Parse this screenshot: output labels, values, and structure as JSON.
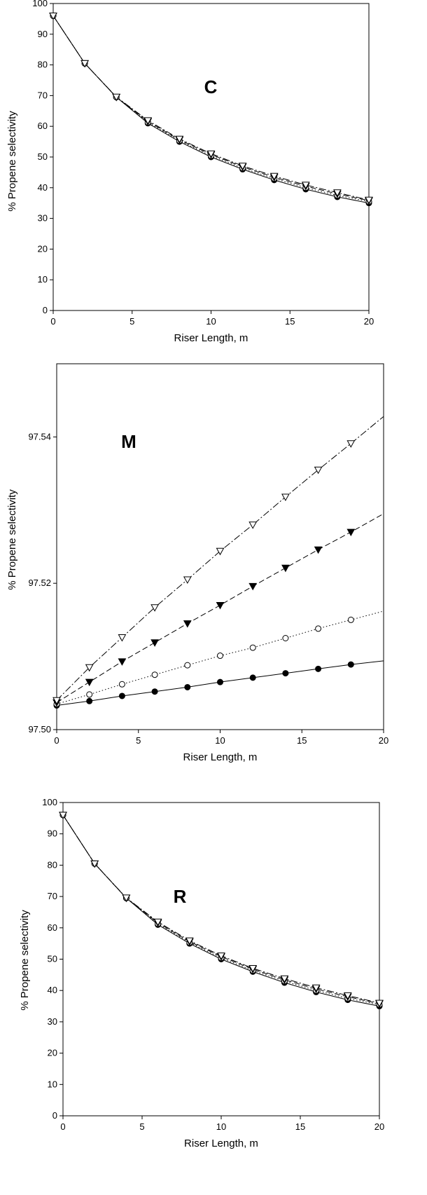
{
  "chart_data": [
    {
      "type": "line",
      "annotation": "C",
      "xlabel": "Riser Length, m",
      "ylabel": "% Propene selectivity",
      "xlim": [
        0,
        20
      ],
      "ylim": [
        0,
        100
      ],
      "xticks": [
        "0",
        "5",
        "10",
        "15",
        "20"
      ],
      "yticks": [
        "0",
        "10",
        "20",
        "30",
        "40",
        "50",
        "60",
        "70",
        "80",
        "90",
        "100"
      ],
      "grid": false,
      "x": [
        0,
        2,
        4,
        6,
        8,
        10,
        12,
        14,
        16,
        18,
        20
      ],
      "series": [
        {
          "marker": "filled-circle",
          "linestyle": "solid",
          "values": [
            96,
            80.5,
            69.5,
            61,
            55,
            50,
            46,
            42.5,
            39.5,
            37,
            35
          ]
        },
        {
          "marker": "open-circle",
          "linestyle": "dotted",
          "values": [
            96,
            80.5,
            69.5,
            61.3,
            55.3,
            50.4,
            46.4,
            43,
            40,
            37.5,
            35.5
          ]
        },
        {
          "marker": "filled-triangle-down",
          "linestyle": "dashed",
          "values": [
            96,
            80.5,
            69.5,
            61.6,
            55.6,
            50.8,
            46.8,
            43.4,
            40.5,
            38,
            35.8
          ]
        },
        {
          "marker": "open-triangle-down",
          "linestyle": "dash-dot",
          "values": [
            96,
            80.5,
            69.6,
            61.9,
            55.9,
            51.1,
            47.1,
            43.8,
            40.9,
            38.4,
            36
          ]
        }
      ]
    },
    {
      "type": "line",
      "annotation": "M",
      "xlabel": "Riser Length, m",
      "ylabel": "% Propene selectivity",
      "xlim": [
        0,
        20
      ],
      "ylim": [
        97.5,
        97.55
      ],
      "xticks": [
        "0",
        "5",
        "10",
        "15",
        "20"
      ],
      "yticks": [
        "97.50",
        "97.52",
        "97.54"
      ],
      "ytick_values": [
        97.5,
        97.52,
        97.54
      ],
      "grid": false,
      "x": [
        0,
        2,
        4,
        6,
        8,
        10,
        12,
        14,
        16,
        18
      ],
      "x_end": 20,
      "series": [
        {
          "marker": "filled-circle",
          "linestyle": "solid",
          "values": [
            97.5033,
            97.5039,
            97.5046,
            97.5052,
            97.5058,
            97.5065,
            97.5071,
            97.5077,
            97.5083,
            97.5089
          ],
          "end_value": 97.5094
        },
        {
          "marker": "open-circle",
          "linestyle": "dotted",
          "values": [
            97.5035,
            97.5048,
            97.5062,
            97.5075,
            97.5088,
            97.5101,
            97.5112,
            97.5125,
            97.5138,
            97.515
          ],
          "end_value": 97.5162
        },
        {
          "marker": "filled-triangle-down",
          "linestyle": "dashed",
          "values": [
            97.5037,
            97.5065,
            97.5093,
            97.5119,
            97.5145,
            97.517,
            97.5196,
            97.5221,
            97.5246,
            97.527
          ],
          "end_value": 97.5295
        },
        {
          "marker": "open-triangle-down",
          "linestyle": "dash-dot",
          "values": [
            97.504,
            97.5085,
            97.5126,
            97.5167,
            97.5205,
            97.5244,
            97.528,
            97.5318,
            97.5355,
            97.5391
          ],
          "end_value": 97.5428
        }
      ]
    },
    {
      "type": "line",
      "annotation": "R",
      "xlabel": "Riser Length, m",
      "ylabel": "% Propene selectivity",
      "xlim": [
        0,
        20
      ],
      "ylim": [
        0,
        100
      ],
      "xticks": [
        "0",
        "5",
        "10",
        "15",
        "20"
      ],
      "yticks": [
        "0",
        "10",
        "20",
        "30",
        "40",
        "50",
        "60",
        "70",
        "80",
        "90",
        "100"
      ],
      "grid": false,
      "x": [
        0,
        2,
        4,
        6,
        8,
        10,
        12,
        14,
        16,
        18,
        20
      ],
      "series": [
        {
          "marker": "filled-circle",
          "linestyle": "solid",
          "values": [
            96,
            80.5,
            69.5,
            61,
            55,
            50,
            46,
            42.5,
            39.5,
            37,
            35
          ]
        },
        {
          "marker": "open-circle",
          "linestyle": "dotted",
          "values": [
            96,
            80.5,
            69.5,
            61.3,
            55.3,
            50.4,
            46.4,
            43,
            40,
            37.5,
            35.5
          ]
        },
        {
          "marker": "filled-triangle-down",
          "linestyle": "dashed",
          "values": [
            96,
            80.5,
            69.5,
            61.6,
            55.6,
            50.8,
            46.8,
            43.4,
            40.5,
            38,
            35.8
          ]
        },
        {
          "marker": "open-triangle-down",
          "linestyle": "dash-dot",
          "values": [
            96,
            80.5,
            69.6,
            61.9,
            55.9,
            51.1,
            47.1,
            43.8,
            40.9,
            38.4,
            36
          ]
        }
      ]
    }
  ]
}
